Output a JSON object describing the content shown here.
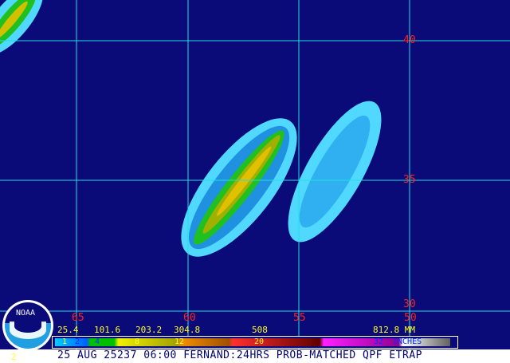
{
  "map": {
    "longitude_labels": [
      "65",
      "60",
      "55",
      "50"
    ],
    "latitude_labels": [
      "40",
      "35",
      "30"
    ],
    "colors": {
      "background": "#0a0a78",
      "grid": "#20e0e0",
      "labels": "#ff2020"
    }
  },
  "logo": {
    "text": "NOAA"
  },
  "legend": {
    "mm_labels": [
      "25.4",
      "101.6",
      "203.2",
      "304.8",
      "508",
      "812.8 MM"
    ],
    "inch_labels": [
      "1",
      "2",
      "4",
      "8",
      "12",
      "20",
      "32",
      "INCHES"
    ]
  },
  "footer": {
    "title": "25 AUG 25237 06:00 FERNAND:24HRS PROB-MATCHED QPF ETRAP",
    "page": "2"
  }
}
